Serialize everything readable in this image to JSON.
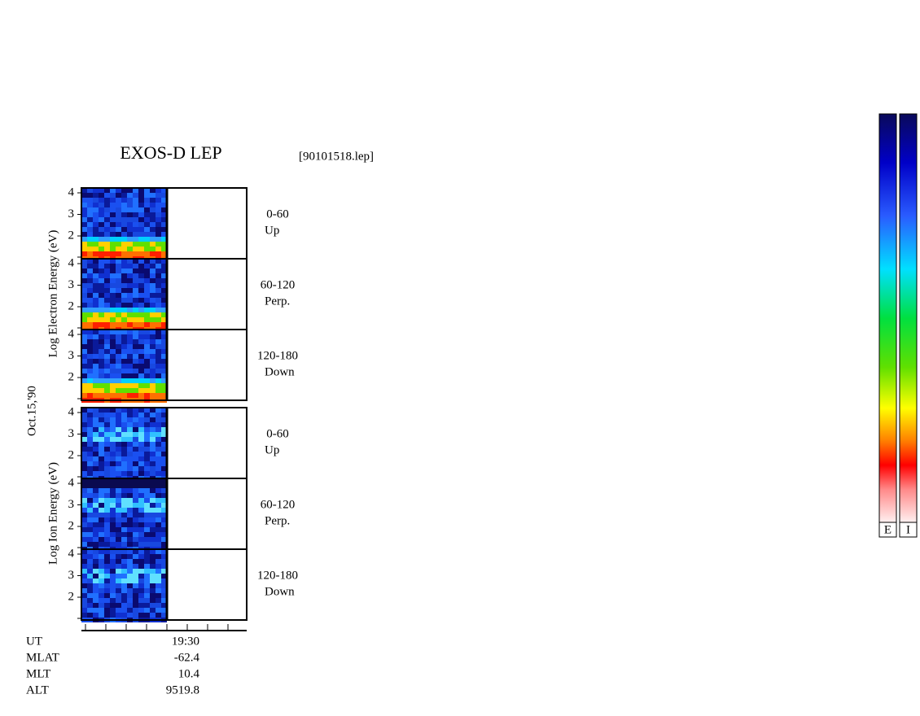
{
  "header": {
    "title": "EXOS-D LEP",
    "file": "[90101518.lep]"
  },
  "date": "Oct.15,'90",
  "electron": {
    "axis_label": "Log Electron Energy (eV)",
    "panels": [
      {
        "angle": "0-60",
        "direction": "Up",
        "yticks": [
          4,
          3,
          2
        ]
      },
      {
        "angle": "60-120",
        "direction": "Perp.",
        "yticks": [
          4,
          3,
          2
        ]
      },
      {
        "angle": "120-180",
        "direction": "Down",
        "yticks": [
          4,
          3,
          2
        ]
      }
    ]
  },
  "ion": {
    "axis_label": "Log Ion Energy (eV)",
    "panels": [
      {
        "angle": "0-60",
        "direction": "Up",
        "yticks": [
          4,
          3,
          2
        ]
      },
      {
        "angle": "60-120",
        "direction": "Perp.",
        "yticks": [
          4,
          3,
          2
        ]
      },
      {
        "angle": "120-180",
        "direction": "Down",
        "yticks": [
          4,
          3,
          2
        ]
      }
    ]
  },
  "orbit": {
    "labels": [
      "UT",
      "MLAT",
      "MLT",
      "ALT"
    ],
    "values": [
      "19:30",
      "-62.4",
      "10.4",
      "9519.8"
    ]
  },
  "colorbars": [
    "E",
    "I"
  ]
}
